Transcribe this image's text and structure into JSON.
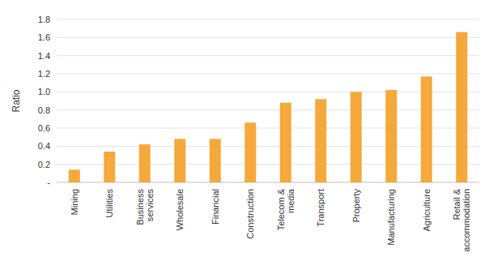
{
  "chart_data": {
    "type": "bar",
    "y_label": "Ratio",
    "categories": [
      "Mining",
      "Utilities",
      "Business services",
      "Wholesale",
      "Financial",
      "Construction",
      "Telecom & media",
      "Transport",
      "Property",
      "Manufacturing",
      "Agriculture",
      "Retail & accommodation"
    ],
    "values": [
      0.14,
      0.34,
      0.42,
      0.48,
      0.48,
      0.66,
      0.88,
      0.92,
      1.0,
      1.02,
      1.17,
      1.66
    ],
    "color": "#f4a93a",
    "ylim": [
      0,
      1.8
    ],
    "yticks": [
      {
        "value": 0,
        "label": "-"
      },
      0.2,
      0.4,
      0.6,
      0.8,
      {
        "value": 1,
        "label": "1.0"
      },
      1.2,
      1.4,
      1.6,
      1.8
    ],
    "grid": true
  }
}
